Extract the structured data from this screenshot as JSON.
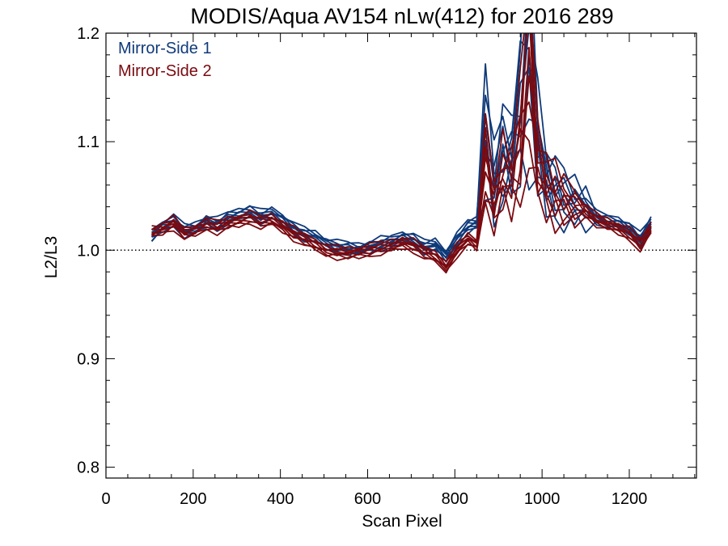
{
  "chart_data": {
    "type": "line",
    "title": "MODIS/Aqua AV154 nLw(412) for 2016 289",
    "xlabel": "Scan Pixel",
    "ylabel": "L2/L3",
    "xlim": [
      0,
      1354
    ],
    "ylim": [
      0.79,
      1.2
    ],
    "xticks": [
      0,
      200,
      400,
      600,
      800,
      1000,
      1200
    ],
    "xtick_labels": [
      "0",
      "200",
      "400",
      "600",
      "800",
      "1000",
      "1200"
    ],
    "yticks": [
      0.8,
      0.9,
      1.0,
      1.1,
      1.2
    ],
    "ytick_labels": [
      "0.8",
      "0.9",
      "1.0",
      "1.1",
      "1.2"
    ],
    "reference_line": {
      "y": 1.0,
      "style": "dotted"
    },
    "legend_placement": "top-left",
    "colors": {
      "mirror_side_1": "#0f3a7a",
      "mirror_side_2": "#7a0a10"
    },
    "x": [
      105,
      130,
      155,
      180,
      205,
      230,
      255,
      280,
      305,
      330,
      355,
      380,
      405,
      430,
      455,
      480,
      505,
      530,
      555,
      580,
      605,
      630,
      655,
      680,
      705,
      730,
      755,
      780,
      805,
      830,
      850,
      870,
      890,
      910,
      930,
      950,
      970,
      990,
      1010,
      1030,
      1050,
      1075,
      1100,
      1125,
      1150,
      1175,
      1200,
      1225,
      1250
    ],
    "series": [
      {
        "name": "Mirror-Side 1",
        "color": "#0f3a7a",
        "values": [
          1.013,
          1.022,
          1.027,
          1.018,
          1.02,
          1.027,
          1.024,
          1.03,
          1.033,
          1.036,
          1.031,
          1.034,
          1.028,
          1.02,
          1.015,
          1.012,
          1.006,
          1.003,
          1.002,
          1.001,
          1.003,
          1.006,
          1.008,
          1.012,
          1.01,
          1.003,
          1.005,
          0.995,
          1.01,
          1.022,
          1.025,
          1.115,
          1.06,
          1.09,
          1.085,
          1.13,
          1.185,
          1.1,
          1.065,
          1.055,
          1.048,
          1.044,
          1.04,
          1.03,
          1.027,
          1.025,
          1.02,
          1.01,
          1.025
        ]
      },
      {
        "name": "Mirror-Side 2",
        "color": "#7a0a10",
        "values": [
          1.017,
          1.02,
          1.025,
          1.015,
          1.018,
          1.024,
          1.021,
          1.025,
          1.027,
          1.03,
          1.026,
          1.028,
          1.022,
          1.015,
          1.01,
          1.005,
          1.0,
          0.998,
          0.997,
          0.998,
          1.0,
          1.002,
          1.004,
          1.007,
          1.004,
          0.998,
          0.994,
          0.985,
          1.0,
          1.01,
          1.005,
          1.08,
          1.04,
          1.07,
          1.065,
          1.1,
          1.17,
          1.08,
          1.06,
          1.05,
          1.045,
          1.04,
          1.036,
          1.028,
          1.024,
          1.02,
          1.015,
          1.005,
          1.02
        ]
      }
    ]
  }
}
